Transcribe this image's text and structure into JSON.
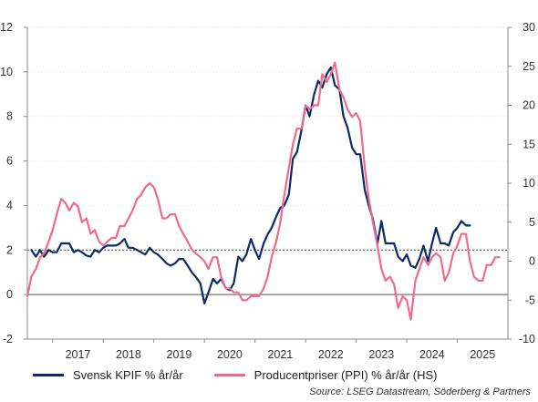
{
  "chart_data": {
    "type": "line",
    "x_axis": {
      "labels": [
        "2017",
        "2018",
        "2019",
        "2020",
        "2021",
        "2022",
        "2023",
        "2024",
        "2025"
      ],
      "range": [
        2016.5,
        2026.0
      ]
    },
    "y_left": {
      "range": [
        -2,
        12
      ],
      "ticks": [
        "12",
        "10",
        "8",
        "6",
        "4",
        "2",
        "0",
        "-2"
      ]
    },
    "y_right": {
      "range": [
        -10,
        30
      ],
      "ticks": [
        "30",
        "25",
        "20",
        "15",
        "10",
        "5",
        "0",
        "-5",
        "-10"
      ]
    },
    "reference_lines": [
      {
        "axis": "left",
        "value": 2,
        "style": "dotted"
      },
      {
        "axis": "left",
        "value": 0,
        "style": "solid"
      }
    ],
    "series": [
      {
        "name": "Svensk KPIF % år/år",
        "axis": "left",
        "color": "#0b2a6b",
        "points": [
          [
            2016.58,
            2.0
          ],
          [
            2016.67,
            1.7
          ],
          [
            2016.75,
            2.0
          ],
          [
            2016.83,
            1.7
          ],
          [
            2016.92,
            2.0
          ],
          [
            2017.0,
            1.9
          ],
          [
            2017.08,
            1.9
          ],
          [
            2017.17,
            2.3
          ],
          [
            2017.25,
            2.3
          ],
          [
            2017.33,
            2.3
          ],
          [
            2017.42,
            1.9
          ],
          [
            2017.5,
            2.0
          ],
          [
            2017.58,
            1.9
          ],
          [
            2017.67,
            1.75
          ],
          [
            2017.75,
            1.7
          ],
          [
            2017.83,
            2.0
          ],
          [
            2017.92,
            1.9
          ],
          [
            2018.0,
            2.1
          ],
          [
            2018.08,
            2.2
          ],
          [
            2018.17,
            2.2
          ],
          [
            2018.25,
            2.2
          ],
          [
            2018.33,
            2.3
          ],
          [
            2018.42,
            2.5
          ],
          [
            2018.5,
            2.1
          ],
          [
            2018.58,
            2.1
          ],
          [
            2018.67,
            2.0
          ],
          [
            2018.75,
            1.9
          ],
          [
            2018.83,
            1.8
          ],
          [
            2018.92,
            2.1
          ],
          [
            2019.0,
            1.9
          ],
          [
            2019.08,
            1.8
          ],
          [
            2019.17,
            1.6
          ],
          [
            2019.25,
            1.4
          ],
          [
            2019.33,
            1.3
          ],
          [
            2019.42,
            1.4
          ],
          [
            2019.5,
            1.6
          ],
          [
            2019.58,
            1.6
          ],
          [
            2019.67,
            1.3
          ],
          [
            2019.75,
            1.0
          ],
          [
            2019.83,
            0.8
          ],
          [
            2019.92,
            0.5
          ],
          [
            2020.0,
            -0.4
          ],
          [
            2020.08,
            0.1
          ],
          [
            2020.17,
            0.7
          ],
          [
            2020.25,
            0.5
          ],
          [
            2020.33,
            0.7
          ],
          [
            2020.42,
            0.3
          ],
          [
            2020.5,
            0.2
          ],
          [
            2020.58,
            0.5
          ],
          [
            2020.67,
            1.7
          ],
          [
            2020.75,
            1.5
          ],
          [
            2020.83,
            1.8
          ],
          [
            2020.92,
            2.5
          ],
          [
            2021.0,
            2.0
          ],
          [
            2021.08,
            1.6
          ],
          [
            2021.17,
            2.3
          ],
          [
            2021.25,
            2.7
          ],
          [
            2021.33,
            3.0
          ],
          [
            2021.42,
            3.5
          ],
          [
            2021.5,
            3.9
          ],
          [
            2021.58,
            4.0
          ],
          [
            2021.67,
            4.5
          ],
          [
            2021.75,
            6.1
          ],
          [
            2021.83,
            6.4
          ],
          [
            2021.92,
            7.4
          ],
          [
            2022.0,
            8.5
          ],
          [
            2022.08,
            8.0
          ],
          [
            2022.17,
            9.0
          ],
          [
            2022.25,
            9.6
          ],
          [
            2022.33,
            9.3
          ],
          [
            2022.42,
            9.9
          ],
          [
            2022.5,
            10.2
          ],
          [
            2022.58,
            9.4
          ],
          [
            2022.67,
            9.2
          ],
          [
            2022.75,
            8.0
          ],
          [
            2022.83,
            7.5
          ],
          [
            2022.92,
            6.6
          ],
          [
            2023.0,
            6.3
          ],
          [
            2023.08,
            6.3
          ],
          [
            2023.17,
            4.7
          ],
          [
            2023.25,
            4.0
          ],
          [
            2023.33,
            3.4
          ],
          [
            2023.42,
            2.3
          ],
          [
            2023.5,
            3.3
          ],
          [
            2023.58,
            2.3
          ],
          [
            2023.67,
            2.3
          ],
          [
            2023.75,
            2.3
          ],
          [
            2023.83,
            1.7
          ],
          [
            2023.92,
            1.5
          ],
          [
            2024.0,
            1.8
          ],
          [
            2024.08,
            1.3
          ],
          [
            2024.17,
            1.2
          ],
          [
            2024.25,
            1.6
          ],
          [
            2024.33,
            2.2
          ],
          [
            2024.42,
            1.5
          ],
          [
            2024.5,
            2.3
          ],
          [
            2024.58,
            3.0
          ],
          [
            2024.67,
            2.3
          ],
          [
            2024.75,
            2.3
          ],
          [
            2024.83,
            2.2
          ],
          [
            2024.92,
            2.8
          ],
          [
            2025.0,
            3.0
          ],
          [
            2025.08,
            3.3
          ],
          [
            2025.17,
            3.1
          ],
          [
            2025.25,
            3.1
          ]
        ]
      },
      {
        "name": "Producentpriser (PPI) % år/år (HS)",
        "axis": "right",
        "color": "#f06a8a",
        "points": [
          [
            2016.5,
            -4.5
          ],
          [
            2016.58,
            -2.0
          ],
          [
            2016.67,
            -1.0
          ],
          [
            2016.75,
            0.5
          ],
          [
            2016.83,
            1.0
          ],
          [
            2016.92,
            2.5
          ],
          [
            2017.0,
            4.0
          ],
          [
            2017.08,
            6.0
          ],
          [
            2017.17,
            8.0
          ],
          [
            2017.25,
            7.5
          ],
          [
            2017.33,
            6.5
          ],
          [
            2017.42,
            7.5
          ],
          [
            2017.5,
            7.0
          ],
          [
            2017.58,
            5.0
          ],
          [
            2017.67,
            5.5
          ],
          [
            2017.75,
            3.5
          ],
          [
            2017.83,
            4.0
          ],
          [
            2017.92,
            2.5
          ],
          [
            2018.0,
            2.0
          ],
          [
            2018.08,
            2.5
          ],
          [
            2018.17,
            3.0
          ],
          [
            2018.25,
            3.0
          ],
          [
            2018.33,
            4.5
          ],
          [
            2018.42,
            4.5
          ],
          [
            2018.5,
            5.5
          ],
          [
            2018.58,
            6.5
          ],
          [
            2018.67,
            8.0
          ],
          [
            2018.75,
            8.5
          ],
          [
            2018.83,
            9.5
          ],
          [
            2018.92,
            10.0
          ],
          [
            2019.0,
            9.5
          ],
          [
            2019.08,
            8.0
          ],
          [
            2019.17,
            5.5
          ],
          [
            2019.25,
            5.5
          ],
          [
            2019.33,
            6.0
          ],
          [
            2019.42,
            6.0
          ],
          [
            2019.5,
            4.5
          ],
          [
            2019.58,
            3.5
          ],
          [
            2019.67,
            2.5
          ],
          [
            2019.75,
            1.5
          ],
          [
            2019.83,
            1.0
          ],
          [
            2019.92,
            0.5
          ],
          [
            2020.0,
            0.0
          ],
          [
            2020.08,
            -1.0
          ],
          [
            2020.17,
            0.5
          ],
          [
            2020.25,
            0.5
          ],
          [
            2020.33,
            -2.0
          ],
          [
            2020.42,
            -3.5
          ],
          [
            2020.5,
            -3.5
          ],
          [
            2020.58,
            -4.0
          ],
          [
            2020.67,
            -4.0
          ],
          [
            2020.75,
            -5.0
          ],
          [
            2020.83,
            -5.0
          ],
          [
            2020.92,
            -4.5
          ],
          [
            2021.0,
            -4.5
          ],
          [
            2021.08,
            -4.5
          ],
          [
            2021.17,
            -3.5
          ],
          [
            2021.25,
            -2.0
          ],
          [
            2021.33,
            0.5
          ],
          [
            2021.42,
            2.5
          ],
          [
            2021.5,
            5.0
          ],
          [
            2021.58,
            8.5
          ],
          [
            2021.67,
            12.0
          ],
          [
            2021.75,
            15.0
          ],
          [
            2021.83,
            17.0
          ],
          [
            2021.92,
            17.0
          ],
          [
            2022.0,
            20.0
          ],
          [
            2022.08,
            19.5
          ],
          [
            2022.17,
            20.0
          ],
          [
            2022.25,
            20.0
          ],
          [
            2022.33,
            24.0
          ],
          [
            2022.42,
            23.0
          ],
          [
            2022.5,
            24.0
          ],
          [
            2022.58,
            25.5
          ],
          [
            2022.67,
            22.0
          ],
          [
            2022.75,
            21.0
          ],
          [
            2022.83,
            19.5
          ],
          [
            2022.92,
            18.5
          ],
          [
            2023.0,
            19.0
          ],
          [
            2023.08,
            18.0
          ],
          [
            2023.17,
            12.0
          ],
          [
            2023.25,
            8.0
          ],
          [
            2023.33,
            5.0
          ],
          [
            2023.42,
            2.0
          ],
          [
            2023.5,
            -1.0
          ],
          [
            2023.58,
            -2.5
          ],
          [
            2023.67,
            -2.0
          ],
          [
            2023.75,
            -3.0
          ],
          [
            2023.83,
            -6.0
          ],
          [
            2023.92,
            -4.5
          ],
          [
            2024.0,
            -5.0
          ],
          [
            2024.08,
            -7.5
          ],
          [
            2024.17,
            -2.5
          ],
          [
            2024.25,
            -1.0
          ],
          [
            2024.33,
            0.5
          ],
          [
            2024.42,
            -0.5
          ],
          [
            2024.5,
            0.5
          ],
          [
            2024.58,
            1.0
          ],
          [
            2024.67,
            0.5
          ],
          [
            2024.75,
            -2.5
          ],
          [
            2024.83,
            -1.5
          ],
          [
            2024.92,
            1.0
          ],
          [
            2025.0,
            2.0
          ],
          [
            2025.08,
            3.5
          ],
          [
            2025.17,
            3.5
          ],
          [
            2025.25,
            0.0
          ],
          [
            2025.33,
            -2.0
          ],
          [
            2025.42,
            -2.5
          ],
          [
            2025.5,
            -2.5
          ],
          [
            2025.58,
            -0.5
          ],
          [
            2025.67,
            -0.5
          ],
          [
            2025.75,
            0.5
          ],
          [
            2025.83,
            0.5
          ]
        ]
      }
    ],
    "legend_position": "bottom-left"
  },
  "legend": {
    "kpif_label": "Svensk KPIF % år/år",
    "ppi_label": "Producentpriser (PPI) % år/år (HS)"
  },
  "source": "Source: LSEG Datastream, Söderberg & Partners"
}
